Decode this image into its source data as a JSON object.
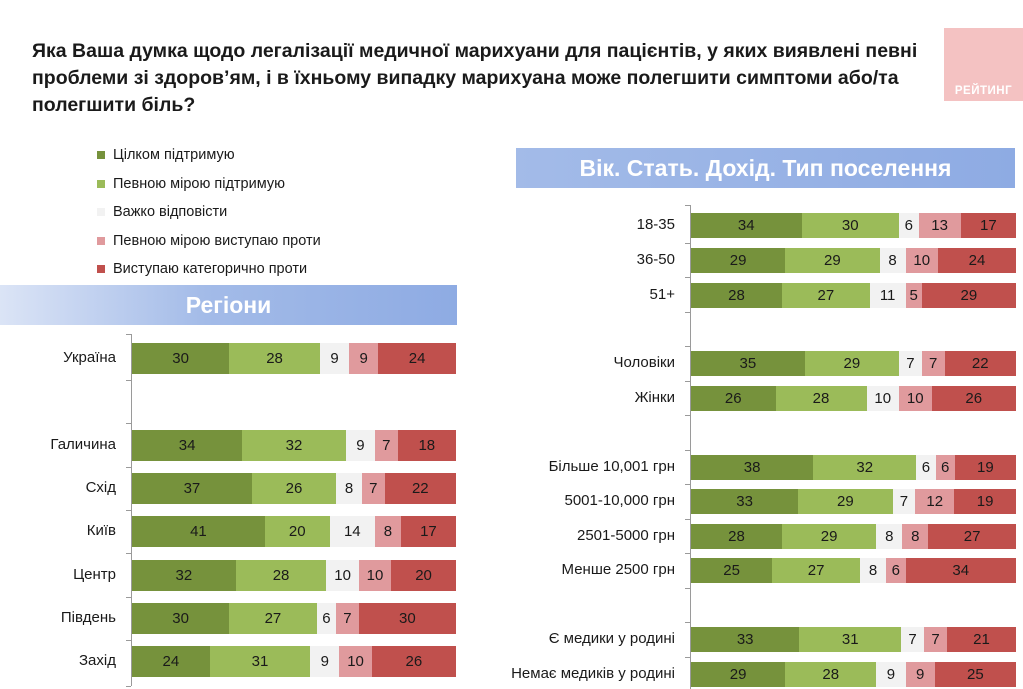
{
  "title": "Яка Ваша думка щодо легалізації медичної марихуани для пацієнтів, у яких виявлені певні проблеми зі здоров’ям, і в їхньому випадку марихуана може полегшити симптоми або/та полегшити біль?",
  "logo_text": "РЕЙТИНГ",
  "colors": {
    "c1": "#76923c",
    "c2": "#9bbb59",
    "c3": "#f2f2f2",
    "c4": "#e09a9d",
    "c5": "#c0504d"
  },
  "legend": [
    {
      "label": "Цілком підтримую",
      "color": "#76923c"
    },
    {
      "label": "Певною мірою підтримую",
      "color": "#9bbb59"
    },
    {
      "label": "Важко відповісти",
      "color": "#f2f2f2"
    },
    {
      "label": "Певною мірою виступаю проти",
      "color": "#e09a9d"
    },
    {
      "label": "Виступаю категорично проти",
      "color": "#c0504d"
    }
  ],
  "banners": {
    "regions": "Регіони",
    "demo": "Вік. Стать. Дохід. Тип поселення"
  },
  "chart_data": [
    {
      "type": "bar",
      "stacked": true,
      "orientation": "horizontal",
      "title": "Регіони",
      "series_names": [
        "Цілком підтримую",
        "Певною мірою підтримую",
        "Важко відповісти",
        "Певною мірою виступаю проти",
        "Виступаю категорично проти"
      ],
      "rows": [
        {
          "label": "Україна",
          "values": [
            30,
            28,
            9,
            9,
            24
          ]
        },
        {
          "label": "Галичина",
          "values": [
            34,
            32,
            9,
            7,
            18
          ]
        },
        {
          "label": "Схід",
          "values": [
            37,
            26,
            8,
            7,
            22
          ]
        },
        {
          "label": "Київ",
          "values": [
            41,
            20,
            14,
            8,
            17
          ]
        },
        {
          "label": "Центр",
          "values": [
            32,
            28,
            10,
            10,
            20
          ]
        },
        {
          "label": "Південь",
          "values": [
            30,
            27,
            6,
            7,
            30
          ]
        },
        {
          "label": "Захід",
          "values": [
            24,
            31,
            9,
            10,
            26
          ]
        }
      ],
      "xlim": [
        0,
        100
      ]
    },
    {
      "type": "bar",
      "stacked": true,
      "orientation": "horizontal",
      "title": "Вік. Стать. Дохід. Тип поселення",
      "series_names": [
        "Цілком підтримую",
        "Певною мірою підтримую",
        "Важко відповісти",
        "Певною мірою виступаю проти",
        "Виступаю категорично проти"
      ],
      "rows": [
        {
          "label": "18-35",
          "values": [
            34,
            30,
            6,
            13,
            17
          ]
        },
        {
          "label": "36-50",
          "values": [
            29,
            29,
            8,
            10,
            24
          ]
        },
        {
          "label": "51+",
          "values": [
            28,
            27,
            11,
            5,
            29
          ]
        },
        {
          "label": "Чоловіки",
          "values": [
            35,
            29,
            7,
            7,
            22
          ]
        },
        {
          "label": "Жінки",
          "values": [
            26,
            28,
            10,
            10,
            26
          ]
        },
        {
          "label": "Більше 10,001 грн",
          "values": [
            38,
            32,
            6,
            6,
            19
          ]
        },
        {
          "label": "5001-10,000 грн",
          "values": [
            33,
            29,
            7,
            12,
            19
          ]
        },
        {
          "label": "2501-5000 грн",
          "values": [
            28,
            29,
            8,
            8,
            27
          ]
        },
        {
          "label": "Менше 2500 грн",
          "values": [
            25,
            27,
            8,
            6,
            34
          ]
        },
        {
          "label": "Є медики у родині",
          "values": [
            33,
            31,
            7,
            7,
            21
          ]
        },
        {
          "label": "Немає медиків у родині",
          "values": [
            29,
            28,
            9,
            9,
            25
          ]
        }
      ],
      "xlim": [
        0,
        100
      ]
    }
  ]
}
